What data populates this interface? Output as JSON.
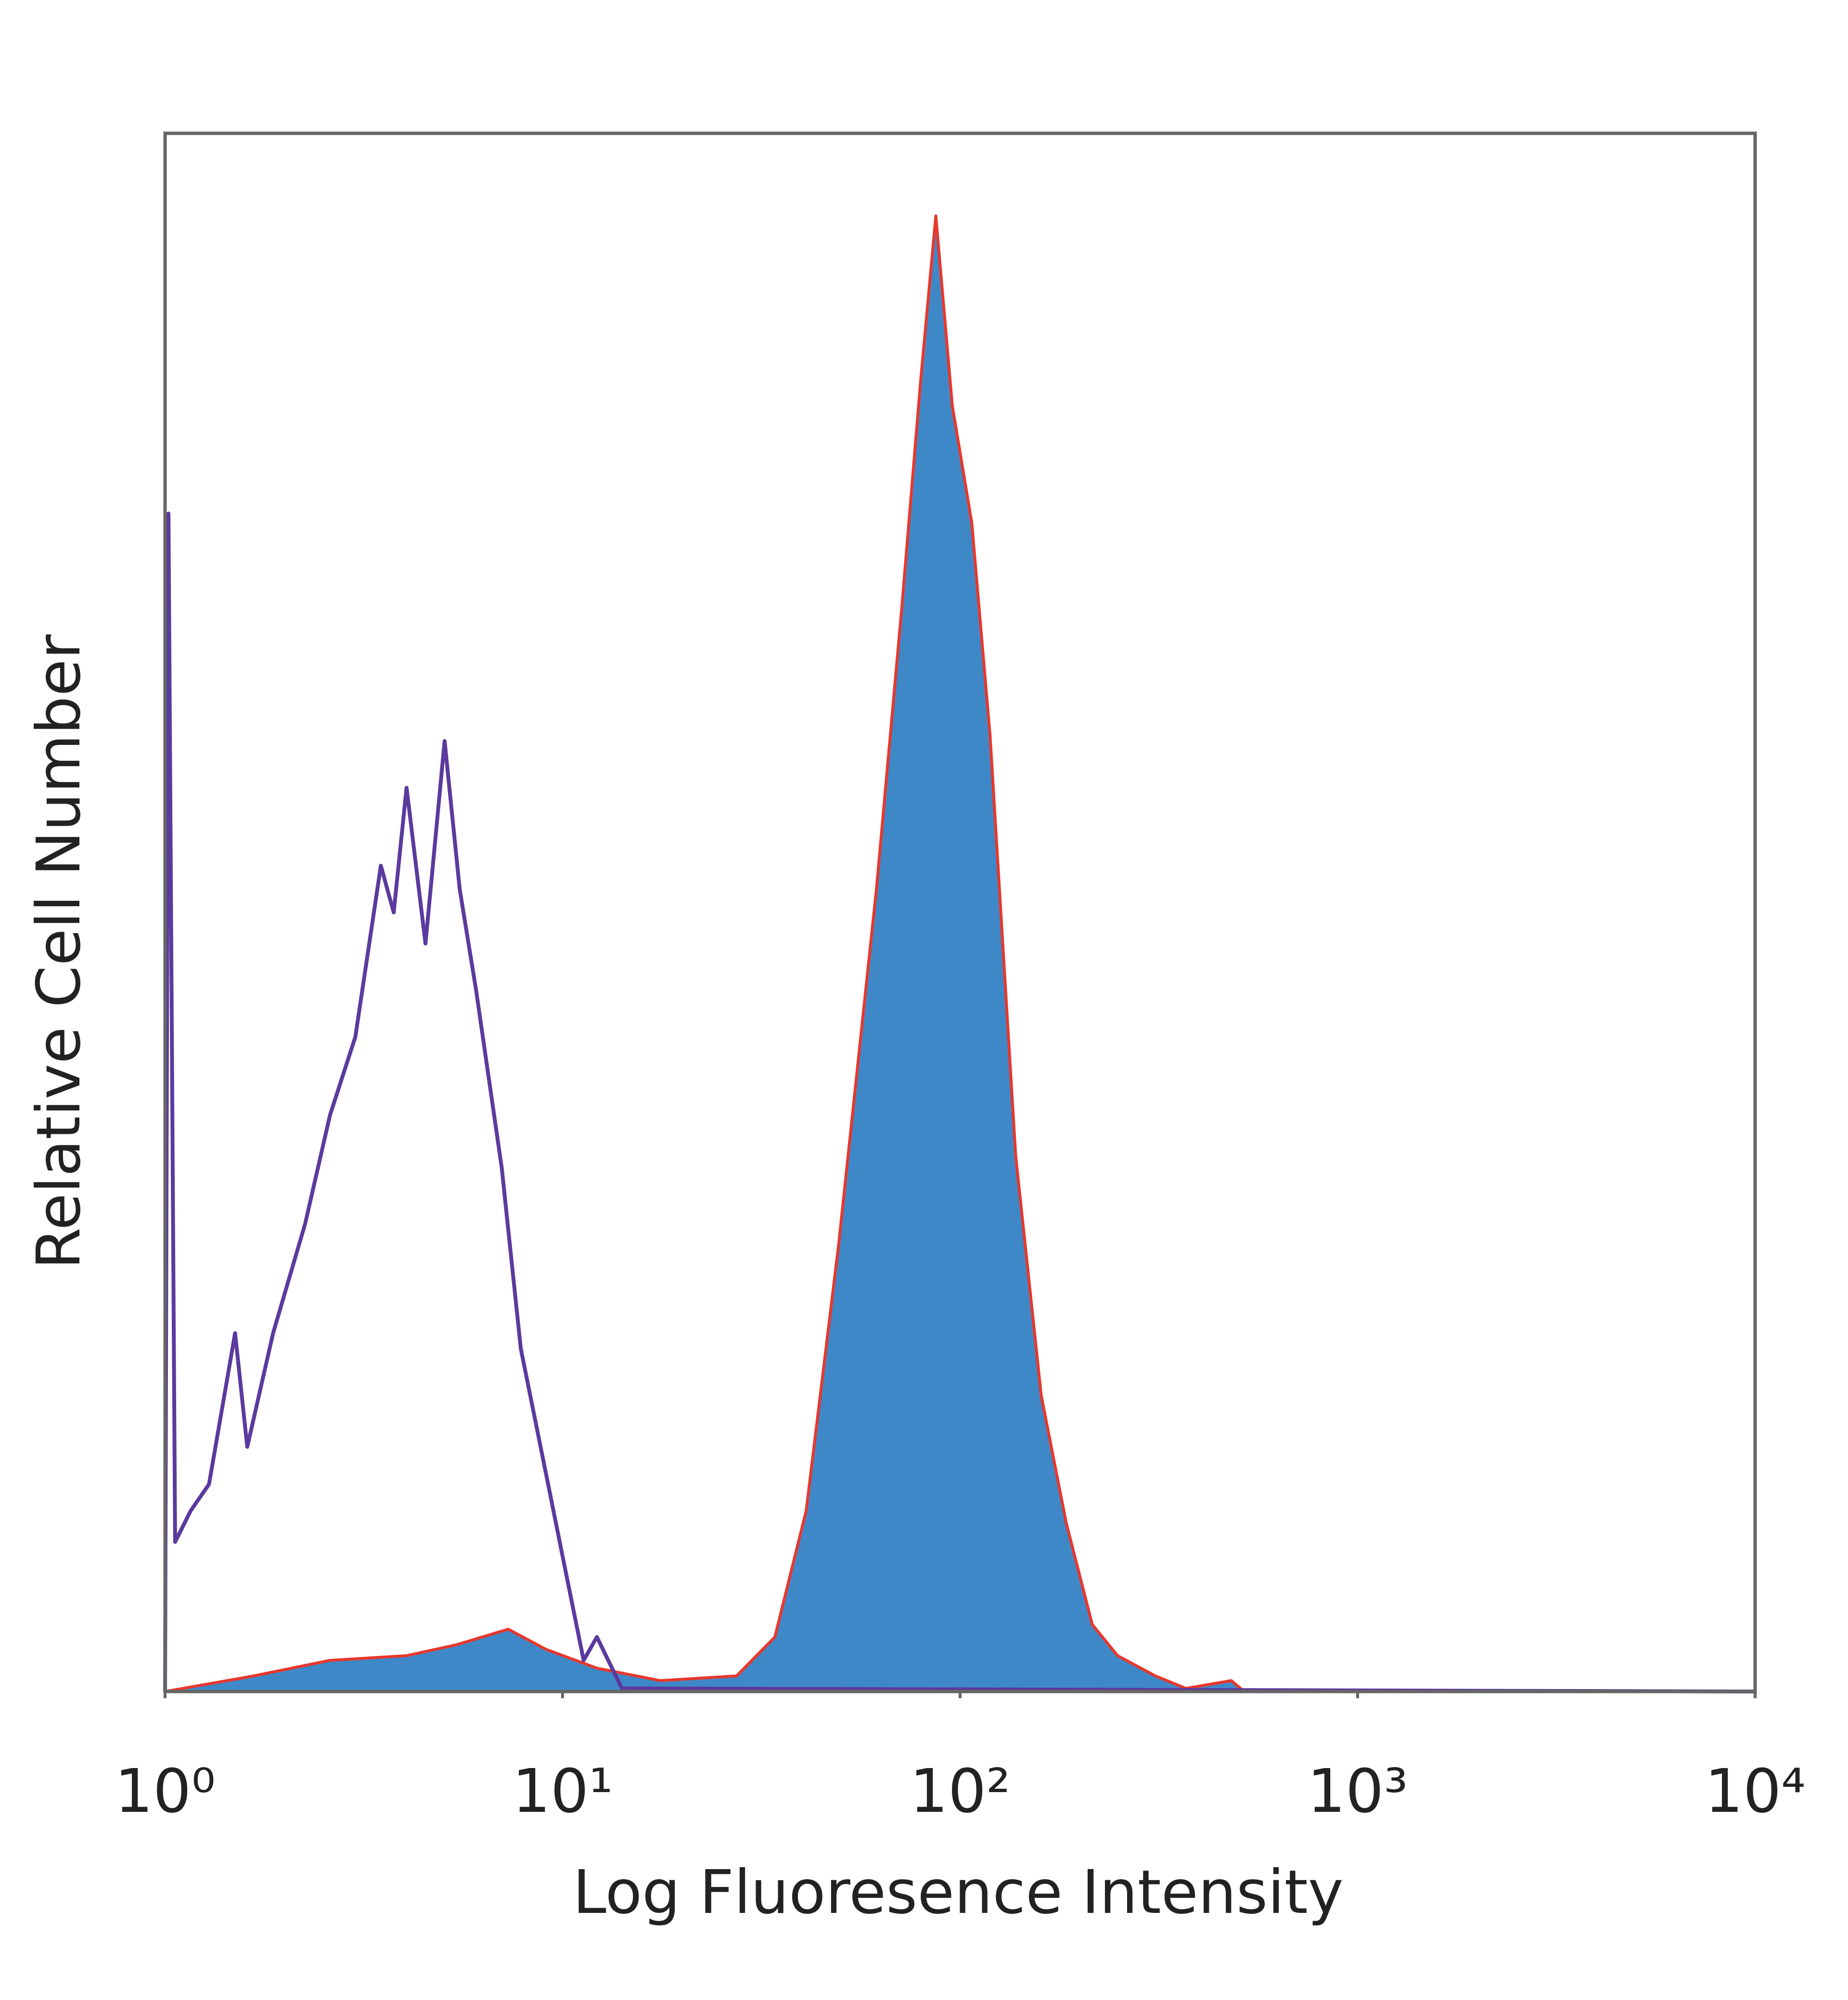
{
  "chart_data": {
    "type": "histogram-overlay",
    "xlabel": "Log Fluoresence Intensity",
    "ylabel": "Relative Cell Number",
    "xscale": "log",
    "xlim": [
      1,
      10000
    ],
    "xticks": [
      {
        "value": 1,
        "label": "10⁰"
      },
      {
        "value": 10,
        "label": "10¹"
      },
      {
        "value": 100,
        "label": "10²"
      },
      {
        "value": 1000,
        "label": "10³"
      },
      {
        "value": 10000,
        "label": "10⁴"
      }
    ],
    "ylim": [
      0,
      100
    ],
    "grid": false,
    "series": [
      {
        "color": "#e8372c",
        "fill": "#3f88c8",
        "x": [
          1,
          1.67,
          2.6,
          4.05,
          5.4,
          7.3,
          9.1,
          12.2,
          17.6,
          27.4,
          34.2,
          41,
          49.5,
          61.6,
          71.3,
          79.5,
          86.9,
          95.6,
          107,
          119,
          138,
          160,
          185,
          215,
          249,
          310,
          370,
          481,
          519,
          10000
        ],
        "values": [
          0,
          1,
          2,
          2.3,
          3,
          4,
          2.7,
          1.5,
          0.7,
          1,
          3.5,
          11.6,
          28.7,
          51.5,
          69.5,
          84,
          94.7,
          82.5,
          75,
          61.3,
          34.4,
          19,
          10.8,
          4.3,
          2.3,
          1,
          0.2,
          0.7,
          0,
          0
        ]
      },
      {
        "color": "#5b3a9e",
        "fill": null,
        "x": [
          1,
          1.02,
          1.06,
          1.16,
          1.29,
          1.5,
          1.61,
          1.87,
          2.25,
          2.6,
          3.01,
          3.49,
          3.76,
          4.05,
          4.52,
          5.05,
          5.51,
          6.06,
          7.03,
          7.85,
          9.08,
          10.5,
          11.3,
          12.2,
          14.1,
          10000
        ],
        "values": [
          0,
          75.6,
          9.6,
          11.6,
          13.3,
          23,
          15.7,
          23,
          30,
          37,
          42,
          53,
          50,
          58,
          48,
          61,
          51.5,
          45,
          33.6,
          22,
          14,
          6,
          2,
          3.5,
          0.2,
          0
        ]
      }
    ]
  }
}
